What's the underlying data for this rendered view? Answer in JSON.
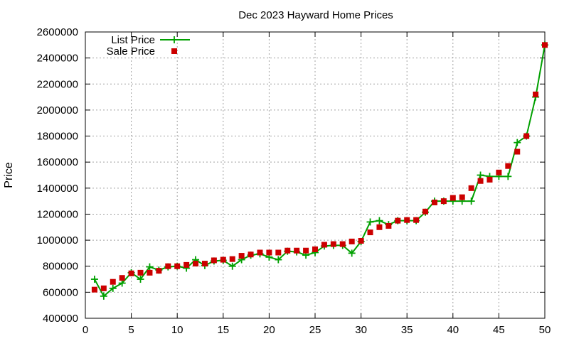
{
  "chart_data": {
    "type": "line",
    "title": "Dec 2023 Hayward Home Prices",
    "xlabel": "",
    "ylabel": "Price",
    "xlim": [
      0,
      50
    ],
    "ylim": [
      400000,
      2600000
    ],
    "x_ticks": [
      0,
      5,
      10,
      15,
      20,
      25,
      30,
      35,
      40,
      45,
      50
    ],
    "y_ticks": [
      400000,
      600000,
      800000,
      1000000,
      1200000,
      1400000,
      1600000,
      1800000,
      2000000,
      2200000,
      2400000,
      2600000
    ],
    "grid": true,
    "legend_position": "top-left",
    "x": [
      1,
      2,
      3,
      4,
      5,
      6,
      7,
      8,
      9,
      10,
      11,
      12,
      13,
      14,
      15,
      16,
      17,
      18,
      19,
      20,
      21,
      22,
      23,
      24,
      25,
      26,
      27,
      28,
      29,
      30,
      31,
      32,
      33,
      34,
      35,
      36,
      37,
      38,
      39,
      40,
      41,
      42,
      43,
      44,
      45,
      46,
      47,
      48,
      49,
      50
    ],
    "series": [
      {
        "name": "List Price",
        "color": "#00a000",
        "marker": "plus",
        "line": true,
        "values": [
          700000,
          570000,
          630000,
          670000,
          750000,
          700000,
          795000,
          770000,
          795000,
          800000,
          785000,
          850000,
          805000,
          840000,
          845000,
          800000,
          850000,
          885000,
          895000,
          870000,
          850000,
          915000,
          910000,
          885000,
          905000,
          955000,
          960000,
          960000,
          900000,
          990000,
          1140000,
          1150000,
          1120000,
          1150000,
          1150000,
          1150000,
          1215000,
          1300000,
          1300000,
          1300000,
          1300000,
          1300000,
          1500000,
          1490000,
          1490000,
          1490000,
          1750000,
          1800000,
          2100000,
          2500000
        ]
      },
      {
        "name": "Sale Price",
        "color": "#cc0000",
        "marker": "square",
        "line": false,
        "values": [
          620000,
          630000,
          680000,
          710000,
          745000,
          750000,
          750000,
          765000,
          800000,
          800000,
          810000,
          820000,
          820000,
          845000,
          850000,
          855000,
          880000,
          890000,
          905000,
          905000,
          905000,
          920000,
          920000,
          920000,
          930000,
          965000,
          970000,
          970000,
          990000,
          995000,
          1060000,
          1100000,
          1110000,
          1150000,
          1155000,
          1155000,
          1220000,
          1290000,
          1300000,
          1325000,
          1330000,
          1400000,
          1455000,
          1465000,
          1520000,
          1570000,
          1680000,
          1800000,
          2120000,
          2500000
        ]
      }
    ]
  }
}
